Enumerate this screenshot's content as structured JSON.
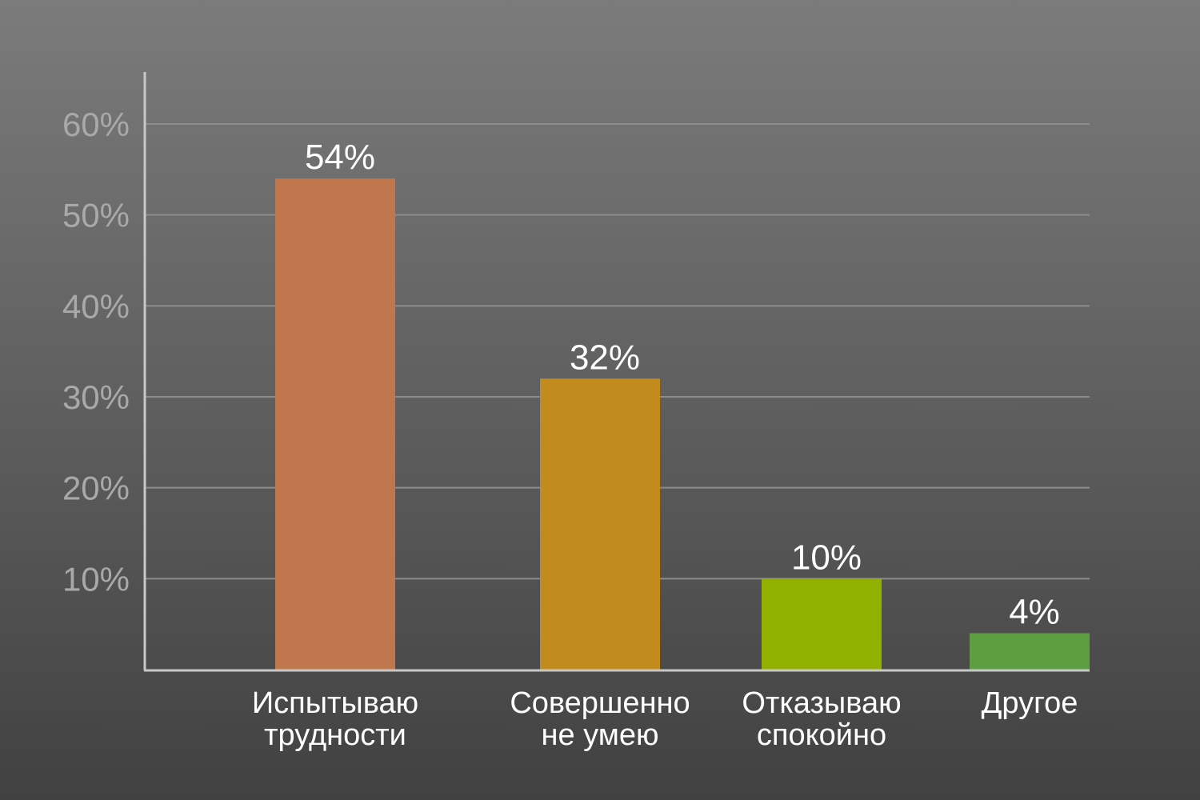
{
  "chart_data": {
    "type": "bar",
    "categories": [
      [
        "Испытываю",
        "трудности"
      ],
      [
        "Совершенно",
        "не умею"
      ],
      [
        "Отказываю",
        "спокойно"
      ],
      [
        "Другое"
      ]
    ],
    "values": [
      54,
      32,
      10,
      4
    ],
    "value_labels": [
      "54%",
      "32%",
      "10%",
      "4%"
    ],
    "bar_colors": [
      "#c0774e",
      "#c28b1d",
      "#92b000",
      "#5e9e42"
    ],
    "ylim": [
      0,
      60
    ],
    "yticks": [
      {
        "value": 10,
        "label": "10%"
      },
      {
        "value": 20,
        "label": "20%"
      },
      {
        "value": 30,
        "label": "30%"
      },
      {
        "value": 40,
        "label": "40%"
      },
      {
        "value": 50,
        "label": "50%"
      },
      {
        "value": 60,
        "label": "60%"
      }
    ],
    "grid": true,
    "legend": false
  }
}
